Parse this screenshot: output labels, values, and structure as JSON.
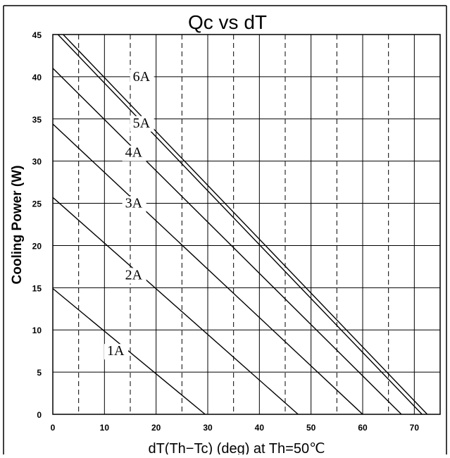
{
  "chart_data": {
    "type": "line",
    "title": "Qc vs dT",
    "xlabel": "dT(Th−Tc) (deg) at Th=50℃",
    "ylabel": "Cooling Power (W)",
    "xlim": [
      0,
      75
    ],
    "ylim": [
      0,
      45
    ],
    "x_ticks": [
      0,
      10,
      20,
      30,
      40,
      50,
      60,
      70
    ],
    "y_ticks": [
      0,
      5,
      10,
      15,
      20,
      25,
      30,
      35,
      40,
      45
    ],
    "grid": true,
    "series": [
      {
        "name": "1A",
        "x": [
          0,
          29.5
        ],
        "y": [
          14.9,
          0
        ]
      },
      {
        "name": "2A",
        "x": [
          0,
          47.5
        ],
        "y": [
          25.7,
          0
        ]
      },
      {
        "name": "3A",
        "x": [
          0,
          60
        ],
        "y": [
          34.4,
          0
        ]
      },
      {
        "name": "4A",
        "x": [
          0,
          67.5
        ],
        "y": [
          41.0,
          0
        ]
      },
      {
        "name": "5A",
        "x": [
          1,
          71.5
        ],
        "y": [
          45.0,
          0
        ]
      },
      {
        "name": "6A",
        "x": [
          2,
          72.5
        ],
        "y": [
          45.0,
          0
        ]
      }
    ],
    "colors": {
      "line": "#000000",
      "grid": "#000000",
      "background": "#ffffff"
    }
  }
}
